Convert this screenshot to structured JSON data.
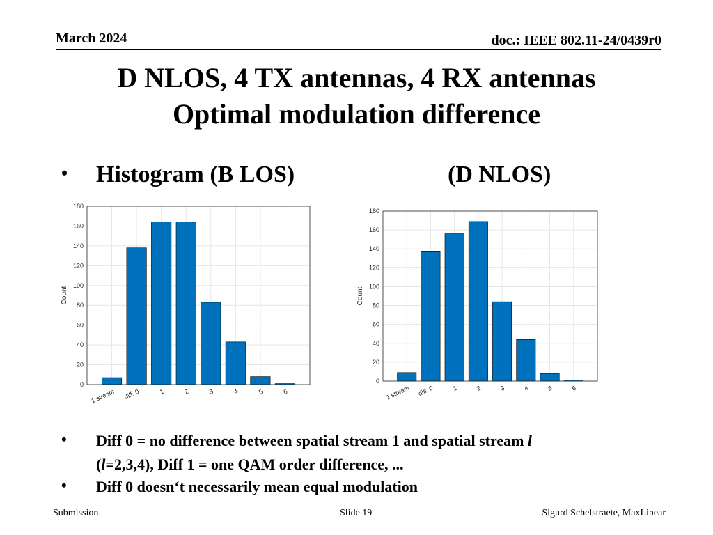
{
  "header": {
    "date": "March 2024",
    "doc": "doc.: IEEE 802.11-24/0439r0"
  },
  "title": {
    "line1": "D NLOS, 4 TX antennas, 4 RX antennas",
    "line2": "Optimal modulation difference"
  },
  "bullets": {
    "b1_text": "Histogram (B LOS)",
    "b1_text2": "(D NLOS)",
    "b2_part1": "Diff 0 = no difference between spatial stream 1 and spatial stream ",
    "b2_ital1": "l",
    "b2_part2": "(",
    "b2_ital2": "l",
    "b2_part3": "=2,3,4), Diff 1 = one QAM order difference, ...",
    "b3_text": "Diff 0 doesn‘t necessarily mean equal modulation",
    "dot": "•"
  },
  "footer": {
    "left": "Submission",
    "mid": "Slide 19",
    "right": "Sigurd Schelstraete, MaxLinear"
  },
  "colors": {
    "bar": "#0072BD",
    "bar_edge": "#000000",
    "grid": "#e6e6e6",
    "axis": "#262626"
  },
  "chart_data": [
    {
      "type": "bar",
      "name": "B LOS",
      "categories": [
        "1 stream",
        "diff. 0",
        "1",
        "2",
        "3",
        "4",
        "5",
        "6"
      ],
      "values": [
        7,
        138,
        164,
        164,
        83,
        43,
        8,
        1
      ],
      "ylabel": "Count",
      "ylim": [
        0,
        180
      ],
      "yticks": [
        0,
        20,
        40,
        60,
        80,
        100,
        120,
        140,
        160,
        180
      ],
      "grid": true
    },
    {
      "type": "bar",
      "name": "D NLOS",
      "categories": [
        "1 stream",
        "diff. 0",
        "1",
        "2",
        "3",
        "4",
        "5",
        "6"
      ],
      "values": [
        9,
        137,
        156,
        169,
        84,
        44,
        8,
        1
      ],
      "ylabel": "Count",
      "ylim": [
        0,
        180
      ],
      "yticks": [
        0,
        20,
        40,
        60,
        80,
        100,
        120,
        140,
        160,
        180
      ],
      "grid": true
    }
  ]
}
